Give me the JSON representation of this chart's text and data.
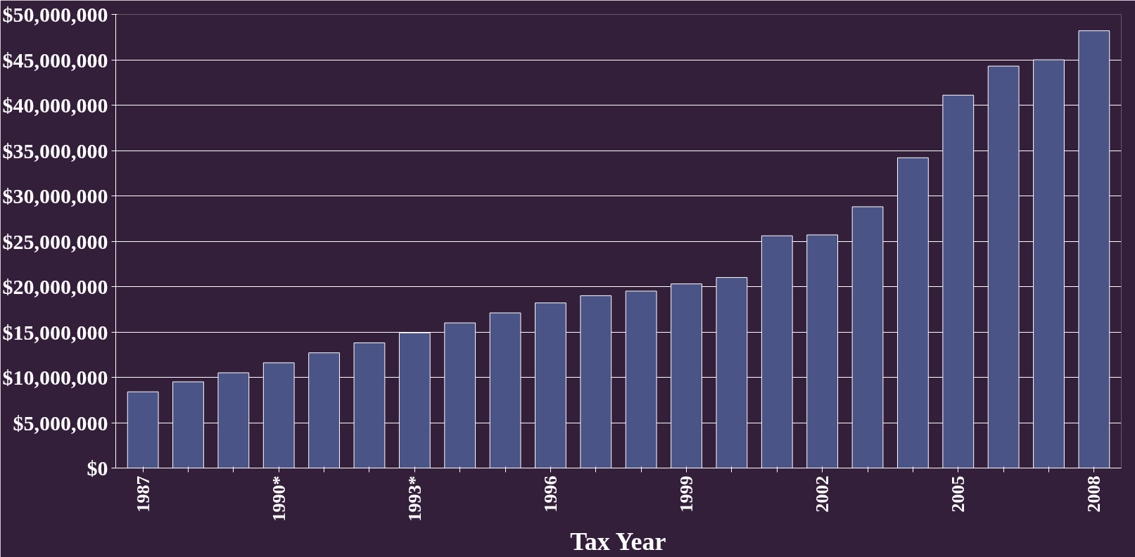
{
  "chart_data": {
    "type": "bar",
    "xlabel": "Tax Year",
    "categories": [
      "1987",
      null,
      null,
      "1990*",
      null,
      null,
      "1993*",
      null,
      null,
      "1996",
      null,
      null,
      "1999",
      null,
      null,
      "2002",
      null,
      null,
      "2005",
      null,
      null,
      "2008"
    ],
    "values": [
      8400000,
      9500000,
      10500000,
      11600000,
      12700000,
      13800000,
      14900000,
      16000000,
      17100000,
      18200000,
      19000000,
      19500000,
      20300000,
      21000000,
      25600000,
      25700000,
      28800000,
      34200000,
      41100000,
      44300000,
      45000000,
      48200000
    ],
    "color": "#4a5486",
    "ylim": [
      0,
      50000000
    ],
    "yticks": [
      {
        "value": 0,
        "label": "$0"
      },
      {
        "value": 5000000,
        "label": "$5,000,000"
      },
      {
        "value": 10000000,
        "label": "$10,000,000"
      },
      {
        "value": 15000000,
        "label": "$15,000,000"
      },
      {
        "value": 20000000,
        "label": "$20,000,000"
      },
      {
        "value": 25000000,
        "label": "$25,000,000"
      },
      {
        "value": 30000000,
        "label": "$30,000,000"
      },
      {
        "value": 35000000,
        "label": "$35,000,000"
      },
      {
        "value": 40000000,
        "label": "$40,000,000"
      },
      {
        "value": 45000000,
        "label": "$45,000,000"
      },
      {
        "value": 50000000,
        "label": "$50,000,000"
      }
    ],
    "grid": "y"
  }
}
